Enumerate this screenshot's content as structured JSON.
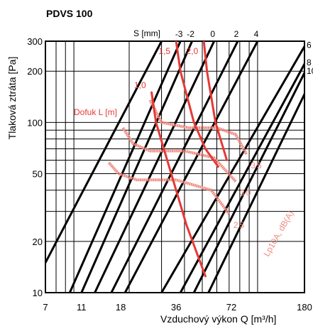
{
  "chart_data": {
    "type": "line",
    "title": "PDVS 100",
    "xlabel": "Vzduchový výkon Q [m³/h]",
    "ylabel": "Tlaková ztráta [Pa]",
    "x_scale": "log",
    "y_scale": "log",
    "xlim": [
      7,
      180
    ],
    "ylim": [
      10,
      300
    ],
    "grid": true,
    "x_ticks": [
      7,
      11,
      18,
      36,
      72,
      180
    ],
    "y_ticks": [
      10,
      20,
      50,
      100,
      200,
      300
    ],
    "setting_axis_label": "S [mm]",
    "setting_lines": [
      {
        "label": "-3",
        "x": [
          9.5,
          38
        ],
        "y": [
          10,
          300
        ]
      },
      {
        "label": "-2",
        "x": [
          11,
          44
        ],
        "y": [
          10,
          300
        ]
      },
      {
        "label": "0",
        "x": [
          13,
          58
        ],
        "y": [
          10,
          300
        ]
      },
      {
        "label": "2",
        "x": [
          16,
          78
        ],
        "y": [
          10,
          300
        ]
      },
      {
        "label": "4",
        "x": [
          19,
          100
        ],
        "y": [
          10,
          300
        ]
      },
      {
        "label": "6",
        "x": [
          30,
          182
        ],
        "y": [
          10,
          285
        ]
      },
      {
        "label": "8",
        "x": [
          38,
          182
        ],
        "y": [
          10,
          225
        ]
      },
      {
        "label": "10",
        "x": [
          45,
          182
        ],
        "y": [
          10,
          200
        ]
      },
      {
        "label": "",
        "x": [
          7,
          30
        ],
        "y": [
          15,
          300
        ]
      },
      {
        "label": "",
        "x": [
          54,
          182
        ],
        "y": [
          10,
          150
        ]
      }
    ],
    "throw_label": "Dofuk L [m]",
    "throw_lines": [
      {
        "label": "1,0",
        "x": [
          26.5,
          28,
          33,
          41,
          52
        ],
        "y": [
          150,
          100,
          55,
          25,
          12.5
        ]
      },
      {
        "label": "1,5",
        "x": [
          36,
          38,
          45,
          52,
          61
        ],
        "y": [
          300,
          200,
          100,
          70,
          55
        ]
      },
      {
        "label": "2,0",
        "x": [
          51,
          53,
          59,
          68
        ],
        "y": [
          300,
          200,
          100,
          60
        ]
      }
    ],
    "noise_label": "Lp10A, dB(A)",
    "noise_lines": [
      {
        "label": "25",
        "x": [
          15.5,
          17.5,
          22,
          36,
          56,
          70
        ],
        "y": [
          58,
          50,
          46,
          46,
          40,
          29
        ]
      },
      {
        "label": "30",
        "x": [
          18.5,
          21,
          26,
          40,
          58,
          76
        ],
        "y": [
          93,
          75,
          68,
          68,
          62,
          45
        ]
      },
      {
        "label": "35",
        "x": [
          26,
          30,
          42,
          60,
          76,
          87
        ],
        "y": [
          135,
          100,
          93,
          93,
          85,
          65
        ]
      }
    ]
  }
}
